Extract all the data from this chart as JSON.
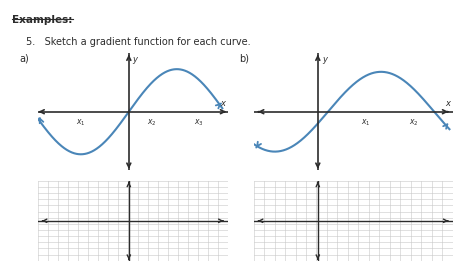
{
  "title": "Examples:",
  "subtitle": "5.   Sketch a gradient function for each curve.",
  "label_a": "a)",
  "label_b": "b)",
  "bg_color": "#ffffff",
  "plot_bg_color": "#f5e6d8",
  "curve_color": "#4a86b8",
  "axis_color": "#2c2c2c",
  "grid_color": "#c8c8c8",
  "text_color": "#2c2c2c"
}
